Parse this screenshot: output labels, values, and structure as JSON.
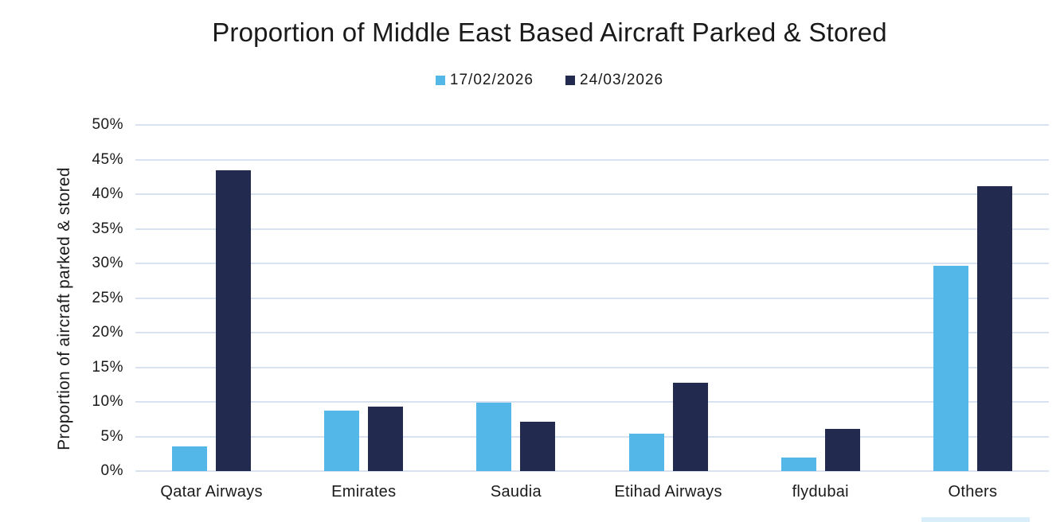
{
  "title": "Proportion of Middle East Based Aircraft Parked & Stored",
  "chart_data": {
    "type": "bar",
    "title": "Proportion of Middle East Based Aircraft Parked & Stored",
    "xlabel": "",
    "ylabel": "Proportion of aircraft parked & stored",
    "ylim": [
      0,
      50
    ],
    "ytick_step": 5,
    "ytick_suffix": "%",
    "grid": true,
    "legend_position": "top-center",
    "categories": [
      "Qatar Airways",
      "Emirates",
      "Saudia",
      "Etihad Airways",
      "flydubai",
      "Others"
    ],
    "series": [
      {
        "name": "17/02/2026",
        "color": "#53B8E8",
        "values": [
          3.6,
          8.7,
          9.9,
          5.4,
          2.0,
          29.6
        ]
      },
      {
        "name": "24/03/2026",
        "color": "#232A50",
        "values": [
          43.4,
          9.3,
          7.1,
          12.8,
          6.1,
          41.1
        ]
      }
    ]
  },
  "colors": {
    "background": "#FFFFFF",
    "gridline": "#D9E2F1",
    "axis_line": "#C7D5E8",
    "text": "#1A1A1A",
    "series1": "#53B8E8",
    "series2": "#232A50",
    "cutoff_element": "#D8EFF9"
  }
}
